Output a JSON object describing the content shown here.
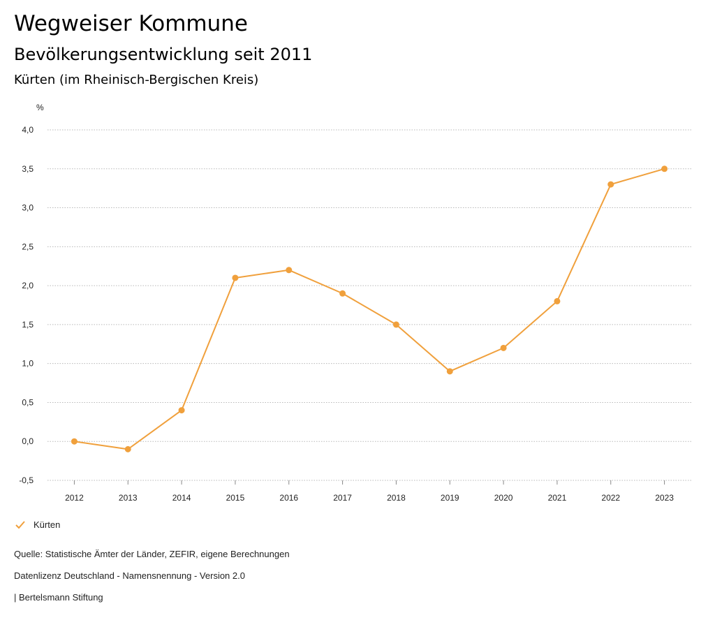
{
  "header": {
    "title": "Wegweiser Kommune",
    "subtitle": "Bevölkerungsentwicklung seit 2011",
    "region": "Kürten (im Rheinisch-Bergischen Kreis)"
  },
  "chart_data": {
    "type": "line",
    "title": "Bevölkerungsentwicklung seit 2011",
    "ylabel": "%",
    "xlabel": "",
    "x": [
      "2012",
      "2013",
      "2014",
      "2015",
      "2016",
      "2017",
      "2018",
      "2019",
      "2020",
      "2021",
      "2022",
      "2023"
    ],
    "y_ticks": [
      "4,0",
      "3,5",
      "3,0",
      "2,5",
      "2,0",
      "1,5",
      "1,0",
      "0,5",
      "0,0",
      "-0,5"
    ],
    "y_tick_values": [
      4.0,
      3.5,
      3.0,
      2.5,
      2.0,
      1.5,
      1.0,
      0.5,
      0.0,
      -0.5
    ],
    "ylim": [
      -0.5,
      4.0
    ],
    "grid": true,
    "legend_position": "bottom-left",
    "series": [
      {
        "name": "Kürten",
        "color": "#f0a03c",
        "values": [
          0.0,
          -0.1,
          0.4,
          2.1,
          2.2,
          1.9,
          1.5,
          0.9,
          1.2,
          1.8,
          3.3,
          3.5
        ]
      }
    ]
  },
  "legend": {
    "label": "Kürten",
    "icon": "check-icon"
  },
  "footer": {
    "source": "Quelle: Statistische Ämter der Länder, ZEFIR, eigene Berechnungen",
    "license": "Datenlizenz Deutschland - Namensnennung - Version 2.0",
    "publisher": "| Bertelsmann Stiftung"
  }
}
